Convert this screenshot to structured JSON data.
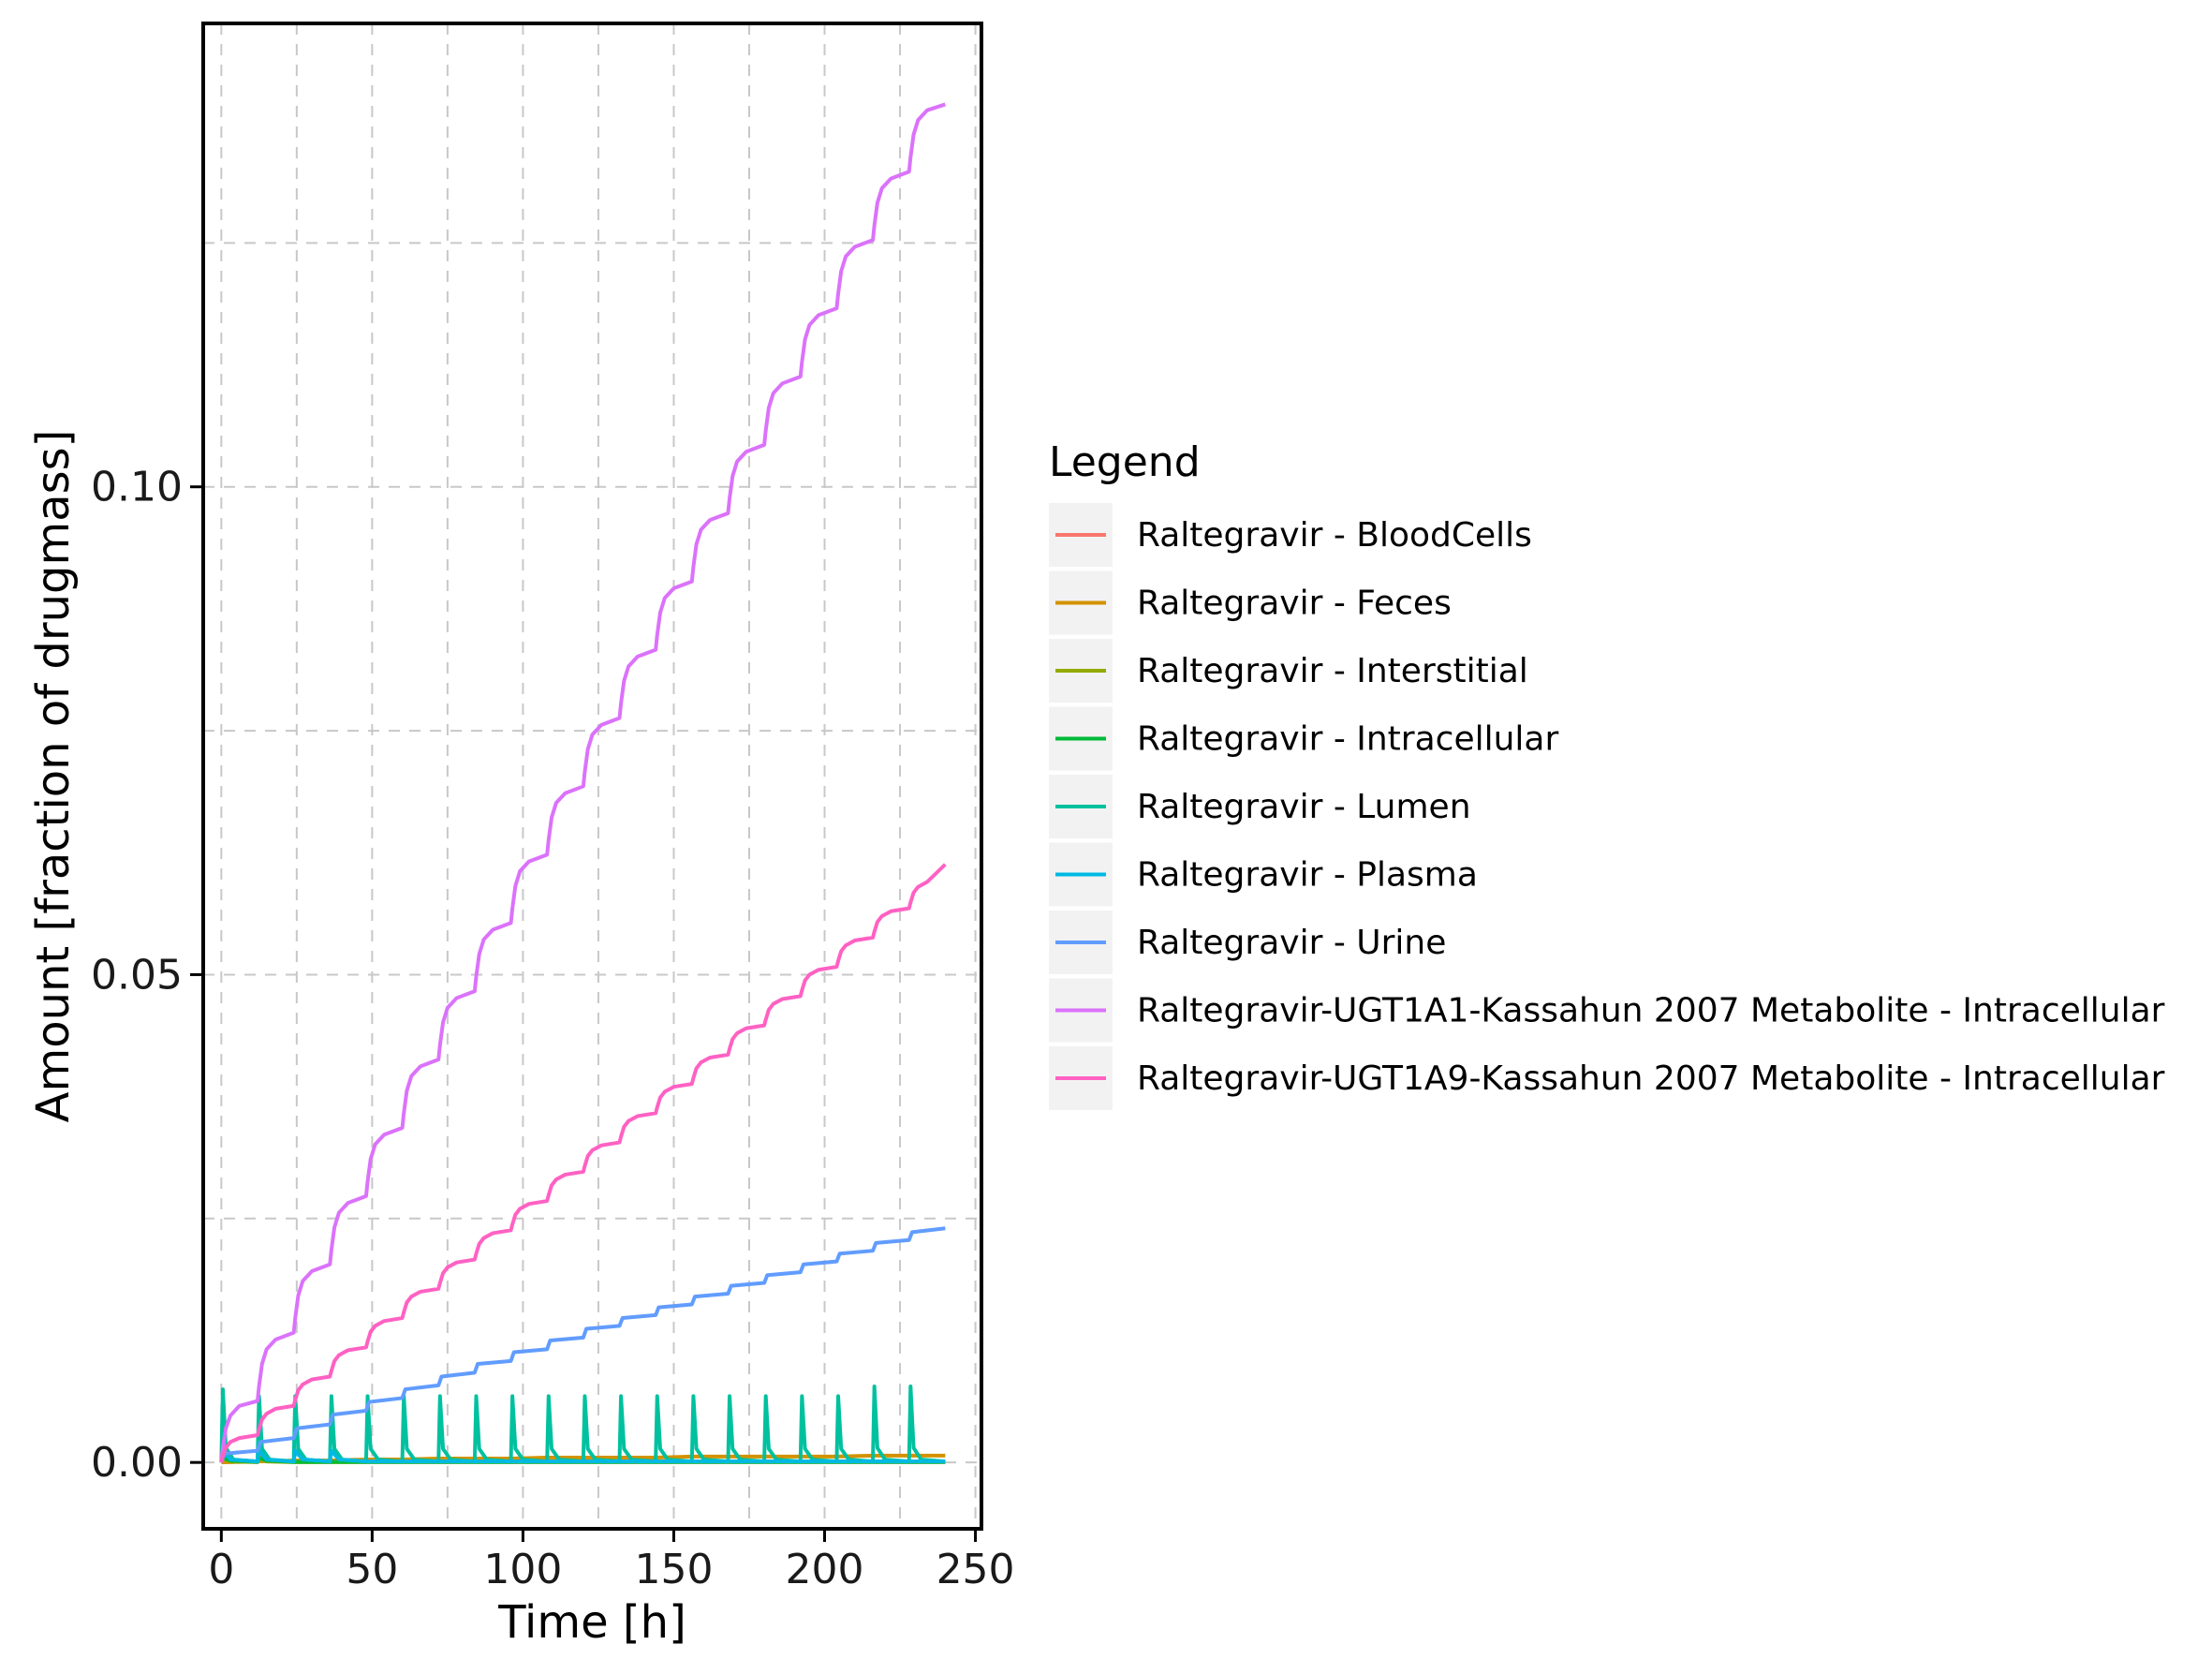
{
  "chart_data": {
    "type": "line",
    "title": "",
    "xlabel": "Time [h]",
    "ylabel": "Amount [fraction of drugmass]",
    "xlim": [
      -6,
      252
    ],
    "ylim": [
      -0.0068,
      0.1475
    ],
    "x_ticks": [
      0,
      50,
      100,
      150,
      200,
      250
    ],
    "x_tick_labels": [
      "0",
      "50",
      "100",
      "150",
      "200",
      "250"
    ],
    "y_ticks": [
      0.0,
      0.05,
      0.1
    ],
    "y_tick_labels": [
      "0.00",
      "0.05",
      "0.10"
    ],
    "y_minor_gridlines": [
      0.025,
      0.075,
      0.125
    ],
    "x_minor_gridlines": [
      25,
      75,
      125,
      175,
      225
    ],
    "grid": true,
    "grid_style": "dashed",
    "legend_title": "Legend",
    "legend_position": "right",
    "dose_interval_h": 12,
    "n_doses": 20,
    "t_end": 240,
    "series": [
      {
        "name": "Raltegravir - BloodCells",
        "color": "#F8766D",
        "x": [
          0,
          0.5,
          2,
          6,
          12,
          12.5,
          14,
          18,
          24,
          36,
          48,
          60,
          72,
          84,
          96,
          108,
          120,
          132,
          144,
          156,
          168,
          180,
          192,
          204,
          216,
          228,
          240
        ],
        "y": [
          0,
          0.0006,
          0.0003,
          0.0001,
          5e-05,
          0.0006,
          0.0003,
          0.0001,
          0.0001,
          0.0001,
          0.0001,
          0.0001,
          0.0001,
          0.0001,
          0.0001,
          0.0001,
          0.0001,
          0.0001,
          0.0001,
          0.0001,
          0.0001,
          0.0001,
          0.0001,
          0.0001,
          0.0001,
          0.0001,
          0.0001
        ]
      },
      {
        "name": "Raltegravir - Feces",
        "color": "#D39200",
        "x": [
          0,
          12,
          24,
          36,
          48,
          60,
          72,
          84,
          96,
          108,
          120,
          132,
          144,
          156,
          168,
          180,
          192,
          204,
          216,
          228,
          240
        ],
        "y": [
          0,
          0.0001,
          0.0002,
          0.0002,
          0.0003,
          0.0003,
          0.0004,
          0.0004,
          0.0004,
          0.0005,
          0.0005,
          0.0005,
          0.0005,
          0.0006,
          0.0006,
          0.0006,
          0.0006,
          0.0006,
          0.0007,
          0.0007,
          0.0007
        ]
      },
      {
        "name": "Raltegravir - Interstitial",
        "color": "#93AA00",
        "x": [
          0,
          0.5,
          3,
          12,
          12.5,
          15,
          24,
          240
        ],
        "y": [
          0,
          0.0004,
          0.0001,
          3e-05,
          0.0004,
          0.0001,
          3e-05,
          3e-05
        ]
      },
      {
        "name": "Raltegravir - Intracellular",
        "color": "#00BA38",
        "x": [
          0,
          0.5,
          3,
          12,
          12.5,
          15,
          24,
          240
        ],
        "y": [
          0,
          0.0005,
          0.0002,
          5e-05,
          0.0005,
          0.0002,
          5e-05,
          5e-05
        ]
      },
      {
        "name": "Raltegravir - Lumen",
        "color": "#00C19F",
        "x": [
          0,
          0.5,
          1.5,
          4,
          12,
          12.5,
          13.5,
          16,
          24,
          24.5,
          25.5,
          28,
          36,
          36.5,
          37.5,
          40,
          48,
          48.5,
          49.5,
          52,
          60,
          60.5,
          61.5,
          64,
          72,
          72.5,
          73.5,
          76,
          84,
          84.5,
          85.5,
          88,
          96,
          96.5,
          97.5,
          100,
          108,
          108.5,
          109.5,
          112,
          120,
          120.5,
          121.5,
          124,
          132,
          132.5,
          133.5,
          136,
          144,
          144.5,
          145.5,
          148,
          156,
          156.5,
          157.5,
          160,
          168,
          168.5,
          169.5,
          172,
          180,
          180.5,
          181.5,
          184,
          192,
          192.5,
          193.5,
          196,
          204,
          204.5,
          205.5,
          208,
          216,
          216.5,
          217.5,
          220,
          228,
          228.5,
          229.5,
          232,
          240
        ],
        "y": [
          0,
          0.0075,
          0.0015,
          0.0003,
          0.0001,
          0.0068,
          0.0014,
          0.0003,
          0.0001,
          0.0068,
          0.0014,
          0.0003,
          0.0001,
          0.0068,
          0.0014,
          0.0003,
          0.0001,
          0.0068,
          0.0014,
          0.0003,
          0.0001,
          0.0068,
          0.0014,
          0.0003,
          0.0001,
          0.0068,
          0.0014,
          0.0003,
          0.0001,
          0.0068,
          0.0014,
          0.0003,
          0.0001,
          0.0068,
          0.0014,
          0.0003,
          0.0001,
          0.0068,
          0.0014,
          0.0003,
          0.0001,
          0.0068,
          0.0014,
          0.0003,
          0.0001,
          0.0068,
          0.0014,
          0.0003,
          0.0001,
          0.0068,
          0.0014,
          0.0003,
          0.0001,
          0.0068,
          0.0014,
          0.0003,
          0.0001,
          0.0068,
          0.0014,
          0.0003,
          0.0001,
          0.0068,
          0.0014,
          0.0003,
          0.0001,
          0.0068,
          0.0014,
          0.0003,
          0.0001,
          0.0068,
          0.0014,
          0.0003,
          0.0001,
          0.0078,
          0.0015,
          0.0003,
          0.0001,
          0.0078,
          0.0015,
          0.0003,
          0.0001
        ]
      },
      {
        "name": "Raltegravir - Plasma",
        "color": "#00B9E3",
        "x": [
          0,
          0.5,
          3,
          12,
          12.5,
          15,
          24,
          24.5,
          27,
          36,
          36.5,
          39,
          48,
          240
        ],
        "y": [
          0,
          0.0012,
          0.0003,
          0.0001,
          0.0012,
          0.0003,
          0.0001,
          0.0012,
          0.0003,
          0.0001,
          0.0012,
          0.0003,
          0.0001,
          0.0001
        ]
      },
      {
        "name": "Raltegravir - Urine",
        "color": "#619CFF",
        "x": [
          0,
          1,
          12,
          13,
          24,
          25,
          36,
          37,
          48,
          49,
          60,
          61,
          72,
          73,
          84,
          85,
          96,
          97,
          108,
          109,
          120,
          121,
          132,
          133,
          144,
          145,
          156,
          157,
          168,
          169,
          180,
          181,
          192,
          193,
          204,
          205,
          216,
          217,
          228,
          229,
          240
        ],
        "y": [
          0,
          0.0009,
          0.0012,
          0.0021,
          0.0025,
          0.0035,
          0.0039,
          0.0049,
          0.0053,
          0.0062,
          0.0066,
          0.0075,
          0.0079,
          0.0088,
          0.0092,
          0.0101,
          0.0104,
          0.0113,
          0.0116,
          0.0125,
          0.0128,
          0.0137,
          0.014,
          0.0148,
          0.0151,
          0.0159,
          0.0162,
          0.017,
          0.0173,
          0.0181,
          0.0184,
          0.0192,
          0.0195,
          0.0203,
          0.0206,
          0.0214,
          0.0217,
          0.0225,
          0.0228,
          0.0236,
          0.024
        ]
      },
      {
        "name": "Raltegravir-UGT1A1-Kassahun 2007 Metabolite - Intracellular",
        "color": "#DB72FB",
        "x": [
          0,
          0.5,
          1.5,
          3,
          6,
          12,
          12.5,
          13.5,
          15,
          18,
          24,
          24.5,
          25.5,
          27,
          30,
          36,
          36.5,
          37.5,
          39,
          42,
          48,
          48.5,
          49.5,
          51,
          54,
          60,
          60.5,
          61.5,
          63,
          66,
          72,
          72.5,
          73.5,
          75,
          78,
          84,
          84.5,
          85.5,
          87,
          90,
          96,
          96.5,
          97.5,
          99,
          102,
          108,
          108.5,
          109.5,
          111,
          114,
          120,
          120.5,
          121.5,
          123,
          126,
          132,
          132.5,
          133.5,
          135,
          138,
          144,
          144.5,
          145.5,
          147,
          150,
          156,
          156.5,
          157.5,
          159,
          162,
          168,
          168.5,
          169.5,
          171,
          174,
          180,
          180.5,
          181.5,
          183,
          186,
          192,
          192.5,
          193.5,
          195,
          198,
          204,
          204.5,
          205.5,
          207,
          210,
          216,
          216.5,
          217.5,
          219,
          222,
          228,
          228.5,
          229.5,
          231,
          234,
          240
        ],
        "y": [
          0,
          0.0015,
          0.0035,
          0.0048,
          0.0058,
          0.0063,
          0.0078,
          0.0101,
          0.0116,
          0.0126,
          0.0133,
          0.0148,
          0.0171,
          0.0186,
          0.0196,
          0.0203,
          0.0218,
          0.0241,
          0.0256,
          0.0266,
          0.0273,
          0.0288,
          0.0311,
          0.0326,
          0.0336,
          0.0343,
          0.0358,
          0.0381,
          0.0396,
          0.0406,
          0.0413,
          0.0428,
          0.0451,
          0.0466,
          0.0476,
          0.0483,
          0.0498,
          0.0521,
          0.0536,
          0.0546,
          0.0553,
          0.0568,
          0.0591,
          0.0606,
          0.0616,
          0.0623,
          0.0638,
          0.0661,
          0.0676,
          0.0686,
          0.0693,
          0.0708,
          0.0731,
          0.0746,
          0.0756,
          0.0763,
          0.0778,
          0.0801,
          0.0816,
          0.0826,
          0.0833,
          0.0848,
          0.0871,
          0.0886,
          0.0896,
          0.0903,
          0.0918,
          0.0941,
          0.0956,
          0.0966,
          0.0973,
          0.0988,
          0.1011,
          0.1026,
          0.1036,
          0.1043,
          0.1058,
          0.1081,
          0.1096,
          0.1106,
          0.1113,
          0.1128,
          0.1151,
          0.1166,
          0.1176,
          0.1183,
          0.1198,
          0.1221,
          0.1236,
          0.1246,
          0.1253,
          0.1268,
          0.1291,
          0.1306,
          0.1316,
          0.1323,
          0.1338,
          0.1361,
          0.1376,
          0.1386,
          0.1392
        ]
      },
      {
        "name": "Raltegravir-UGT1A9-Kassahun 2007 Metabolite - Intracellular",
        "color": "#FF61C3",
        "x": [
          0,
          0.5,
          1.5,
          3,
          6,
          12,
          12.5,
          13.5,
          15,
          18,
          24,
          24.5,
          25.5,
          27,
          30,
          36,
          36.5,
          37.5,
          39,
          42,
          48,
          48.5,
          49.5,
          51,
          54,
          60,
          60.5,
          61.5,
          63,
          66,
          72,
          72.5,
          73.5,
          75,
          78,
          84,
          84.5,
          85.5,
          87,
          90,
          96,
          96.5,
          97.5,
          99,
          102,
          108,
          108.5,
          109.5,
          111,
          114,
          120,
          120.5,
          121.5,
          123,
          126,
          132,
          132.5,
          133.5,
          135,
          138,
          144,
          144.5,
          145.5,
          147,
          150,
          156,
          156.5,
          157.5,
          159,
          162,
          168,
          168.5,
          169.5,
          171,
          174,
          180,
          180.5,
          181.5,
          183,
          186,
          192,
          192.5,
          193.5,
          195,
          198,
          204,
          204.5,
          205.5,
          207,
          210,
          216,
          216.5,
          217.5,
          219,
          222,
          228,
          228.5,
          229.5,
          231,
          234,
          240
        ],
        "y": [
          0,
          0.0007,
          0.0015,
          0.0021,
          0.0025,
          0.0028,
          0.0034,
          0.0044,
          0.005,
          0.0055,
          0.0058,
          0.0064,
          0.0074,
          0.008,
          0.0085,
          0.0088,
          0.0094,
          0.0104,
          0.011,
          0.0115,
          0.0118,
          0.0124,
          0.0134,
          0.014,
          0.0145,
          0.0148,
          0.0154,
          0.0164,
          0.017,
          0.0175,
          0.0178,
          0.0184,
          0.0194,
          0.02,
          0.0205,
          0.0208,
          0.0214,
          0.0224,
          0.023,
          0.0235,
          0.0238,
          0.0244,
          0.0254,
          0.026,
          0.0265,
          0.0268,
          0.0274,
          0.0284,
          0.029,
          0.0295,
          0.0298,
          0.0304,
          0.0314,
          0.032,
          0.0325,
          0.0328,
          0.0334,
          0.0344,
          0.035,
          0.0355,
          0.0358,
          0.0364,
          0.0374,
          0.038,
          0.0385,
          0.0388,
          0.0394,
          0.0404,
          0.041,
          0.0415,
          0.0418,
          0.0424,
          0.0434,
          0.044,
          0.0445,
          0.0448,
          0.0454,
          0.0464,
          0.047,
          0.0475,
          0.0478,
          0.0484,
          0.0494,
          0.05,
          0.0505,
          0.0508,
          0.0514,
          0.0524,
          0.053,
          0.0535,
          0.0538,
          0.0544,
          0.0554,
          0.056,
          0.0565,
          0.0568,
          0.0574,
          0.0584,
          0.059,
          0.0595,
          0.0613
        ]
      }
    ]
  }
}
